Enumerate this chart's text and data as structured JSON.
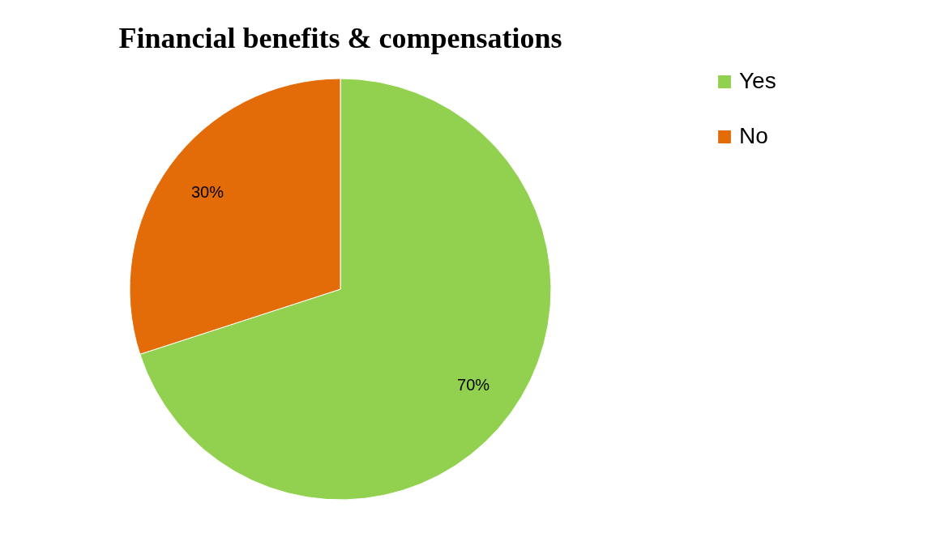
{
  "chart_data": {
    "type": "pie",
    "title": "Financial benefits & compensations",
    "categories": [
      "Yes",
      "No"
    ],
    "values": [
      70,
      30
    ],
    "colors": [
      "#92d050",
      "#e36c09"
    ],
    "value_labels": [
      "70%",
      "30%"
    ],
    "legend": "right"
  }
}
